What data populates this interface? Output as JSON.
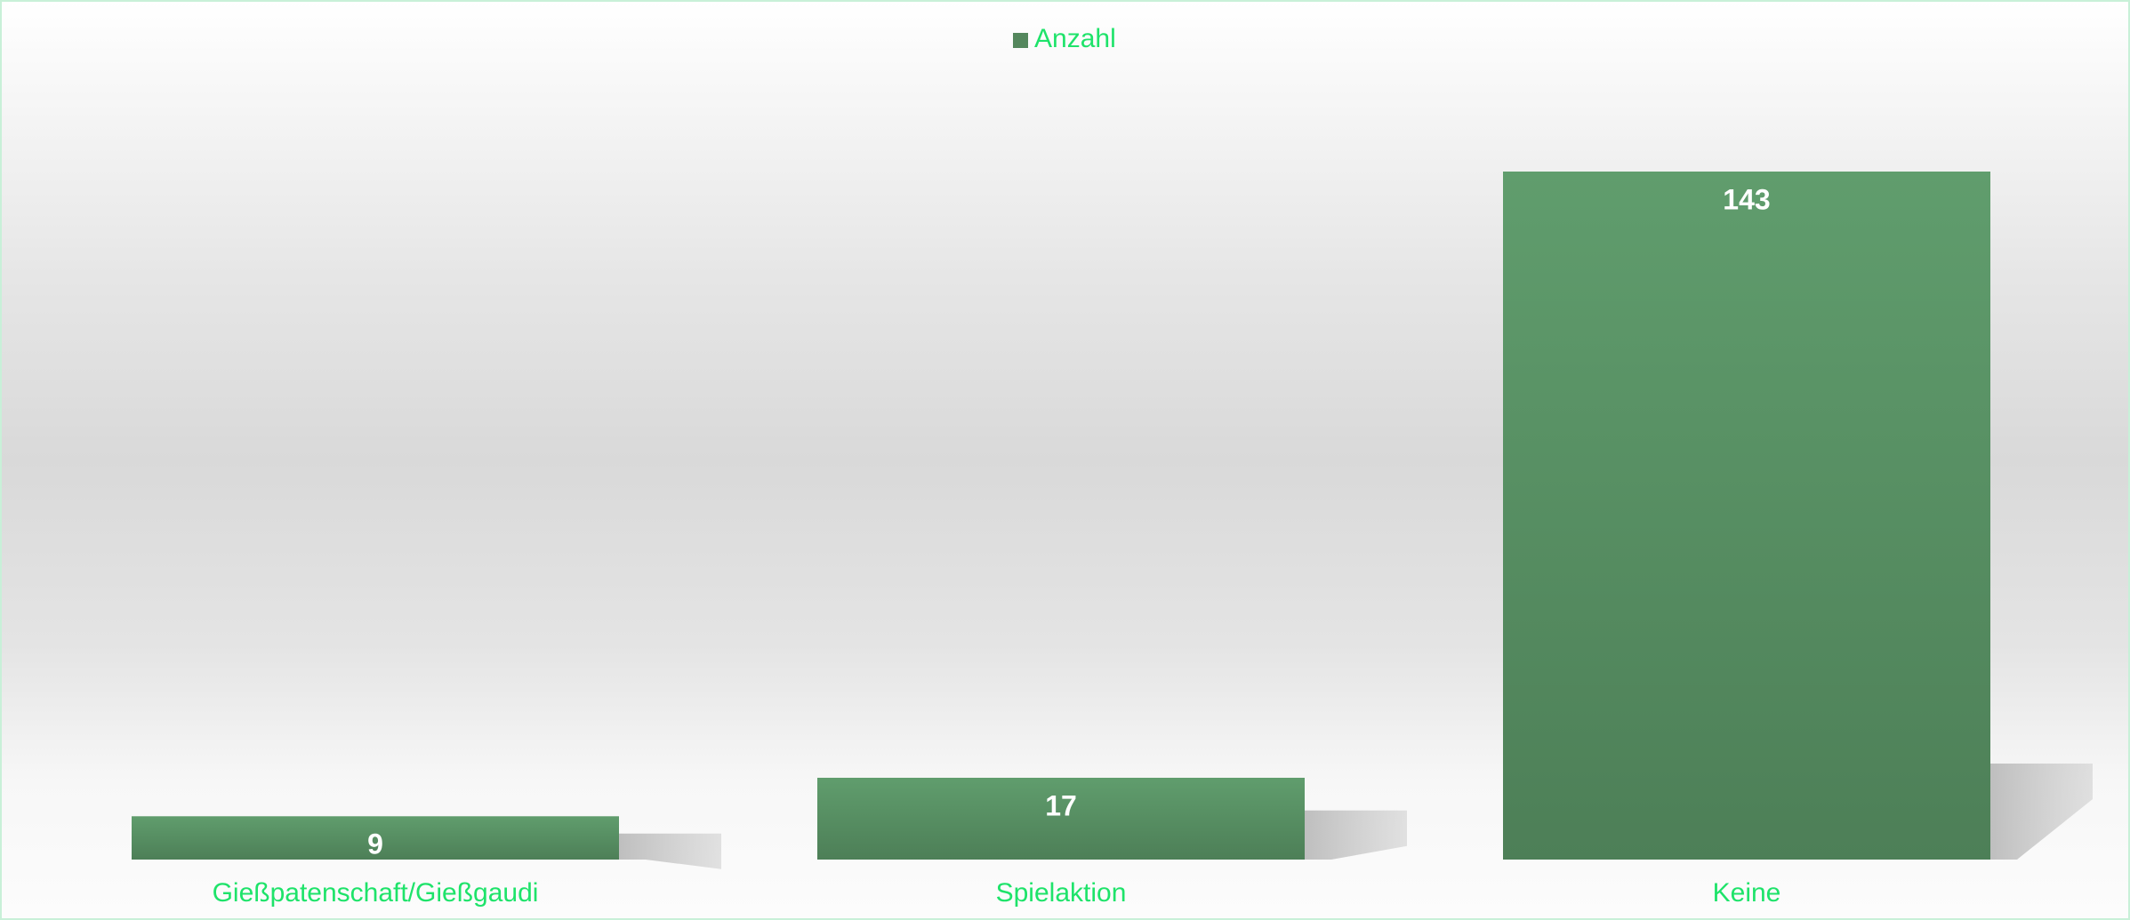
{
  "chart_data": {
    "type": "bar",
    "legend": "Anzahl",
    "legend_position": "top",
    "categories": [
      "Gießpatenschaft/Gießgaudi",
      "Spielaktion",
      "Keine"
    ],
    "series": [
      {
        "name": "Anzahl",
        "color": "#54875d",
        "values": [
          9,
          17,
          143
        ]
      }
    ]
  }
}
